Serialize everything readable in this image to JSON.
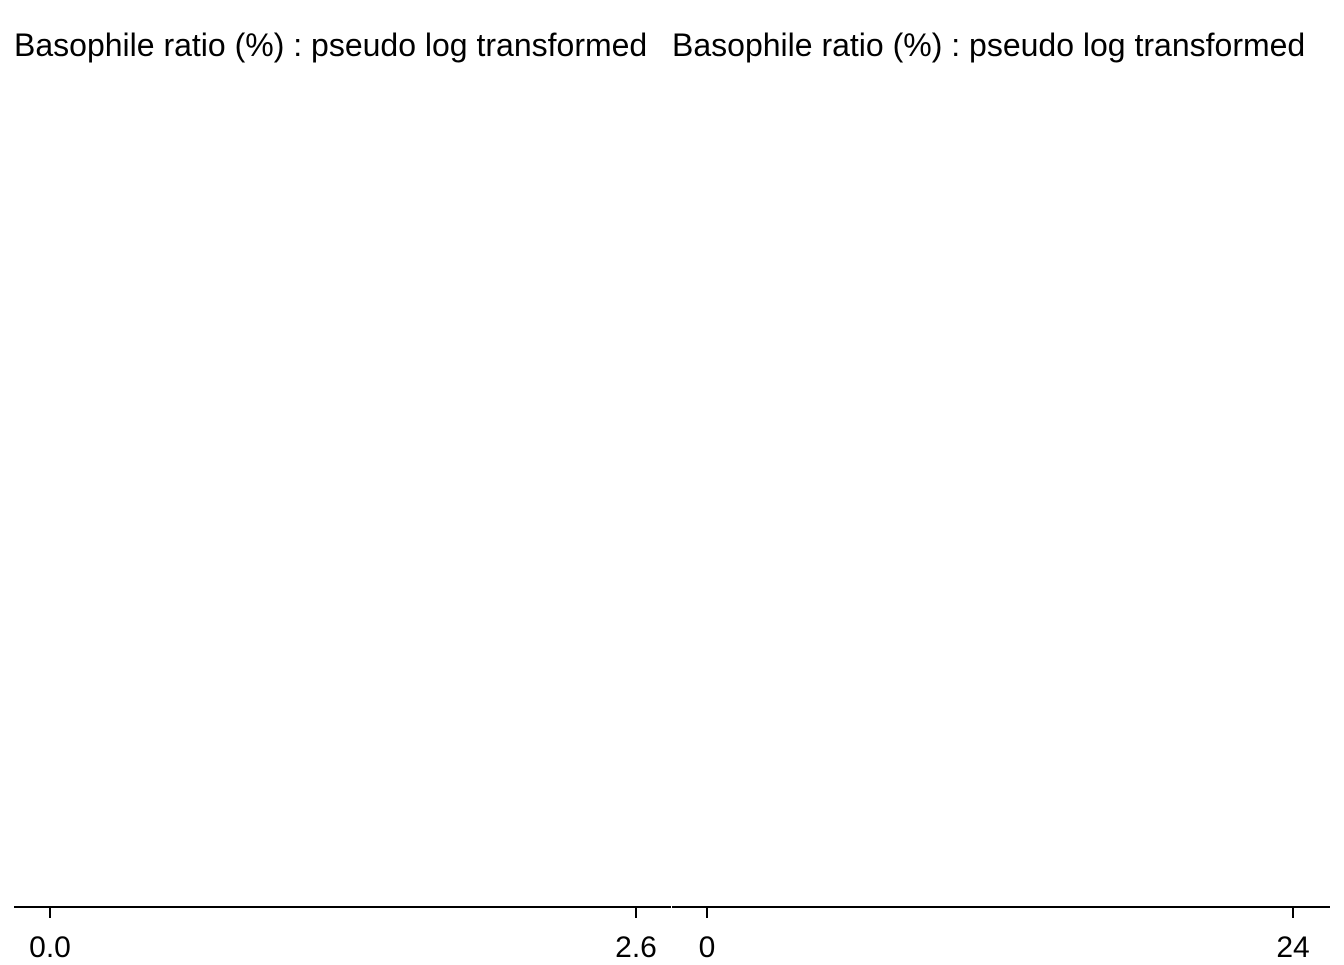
{
  "chart_data": [
    {
      "type": "bar",
      "title": "Basophile ratio (%) : pseudo log transformed",
      "xlabel": "",
      "ylabel": "",
      "xlim": [
        0.0,
        2.6
      ],
      "x_tick_labels": [
        "0.0",
        "2.6"
      ],
      "grid": false,
      "values": []
    },
    {
      "type": "bar",
      "title": "Basophile ratio (%) : pseudo log transformed",
      "xlabel": "",
      "ylabel": "",
      "xlim": [
        0,
        24
      ],
      "x_tick_labels": [
        "0",
        "24"
      ],
      "grid": false,
      "values": []
    }
  ],
  "colors": {
    "background": "#ffffff",
    "axis": "#000000",
    "text": "#000000"
  }
}
